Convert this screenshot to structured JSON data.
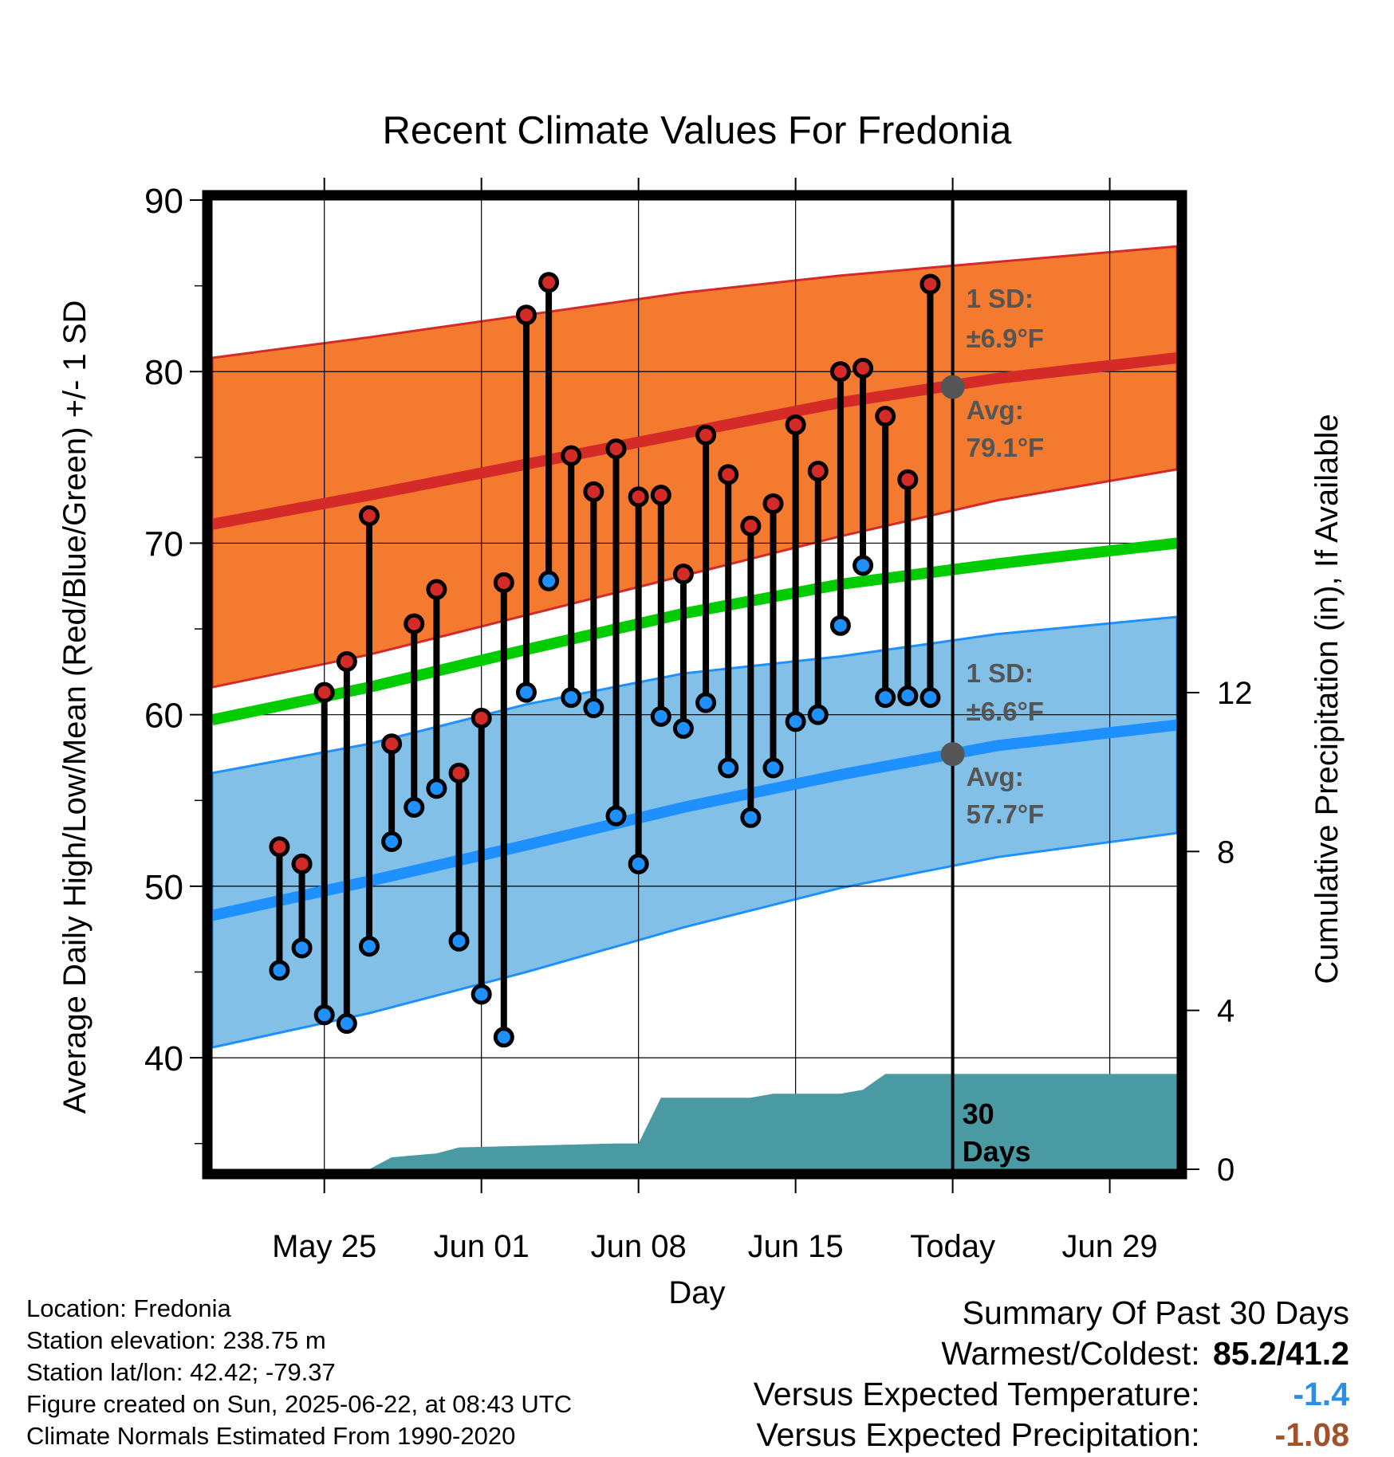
{
  "chart_data": {
    "type": "line",
    "title": "Recent Climate Values For Fredonia",
    "xlabel": "Day",
    "ylabel_left": "Average Daily High/Low/Mean (Red/Blue/Green) +/- 1 SD",
    "ylabel_right": "Cumulative Precipitation (in), If Available",
    "y_left_lim": [
      33.5,
      90
    ],
    "y_left_ticks": [
      40,
      50,
      60,
      70,
      80,
      90
    ],
    "y_right_lim": [
      0,
      24.4
    ],
    "y_right_ticks": [
      0,
      4,
      8,
      12
    ],
    "x_start": "2025-05-20",
    "x_end": "2025-07-02",
    "x_ticks": [
      {
        "date": "2025-05-25",
        "label": "May 25"
      },
      {
        "date": "2025-06-01",
        "label": "Jun 01"
      },
      {
        "date": "2025-06-08",
        "label": "Jun 08"
      },
      {
        "date": "2025-06-15",
        "label": "Jun 15"
      },
      {
        "date": "2025-06-22",
        "label": "Today"
      },
      {
        "date": "2025-06-29",
        "label": "Jun 29"
      }
    ],
    "today": "2025-06-22",
    "days": [
      {
        "date": "2025-05-23",
        "high": 52.3,
        "low": 45.1
      },
      {
        "date": "2025-05-24",
        "high": 51.3,
        "low": 46.4
      },
      {
        "date": "2025-05-25",
        "high": 61.3,
        "low": 42.5
      },
      {
        "date": "2025-05-26",
        "high": 63.1,
        "low": 42.0
      },
      {
        "date": "2025-05-27",
        "high": 71.6,
        "low": 46.5
      },
      {
        "date": "2025-05-28",
        "high": 58.3,
        "low": 52.6
      },
      {
        "date": "2025-05-29",
        "high": 65.3,
        "low": 54.6
      },
      {
        "date": "2025-05-30",
        "high": 67.3,
        "low": 55.7
      },
      {
        "date": "2025-05-31",
        "high": 56.6,
        "low": 46.8
      },
      {
        "date": "2025-06-01",
        "high": 59.8,
        "low": 43.7
      },
      {
        "date": "2025-06-02",
        "high": 67.7,
        "low": 41.2
      },
      {
        "date": "2025-06-03",
        "high": 83.3,
        "low": 61.3
      },
      {
        "date": "2025-06-04",
        "high": 85.2,
        "low": 67.8
      },
      {
        "date": "2025-06-05",
        "high": 75.1,
        "low": 61.0
      },
      {
        "date": "2025-06-06",
        "high": 73.0,
        "low": 60.4
      },
      {
        "date": "2025-06-07",
        "high": 75.5,
        "low": 54.1
      },
      {
        "date": "2025-06-08",
        "high": 72.7,
        "low": 51.3
      },
      {
        "date": "2025-06-09",
        "high": 72.8,
        "low": 59.9
      },
      {
        "date": "2025-06-10",
        "high": 68.2,
        "low": 59.2
      },
      {
        "date": "2025-06-11",
        "high": 76.3,
        "low": 60.7
      },
      {
        "date": "2025-06-12",
        "high": 74.0,
        "low": 56.9
      },
      {
        "date": "2025-06-13",
        "high": 71.0,
        "low": 54.0
      },
      {
        "date": "2025-06-14",
        "high": 72.3,
        "low": 56.9
      },
      {
        "date": "2025-06-15",
        "high": 76.9,
        "low": 59.6
      },
      {
        "date": "2025-06-16",
        "high": 74.2,
        "low": 60.0
      },
      {
        "date": "2025-06-17",
        "high": 80.0,
        "low": 65.2
      },
      {
        "date": "2025-06-18",
        "high": 80.2,
        "low": 68.7
      },
      {
        "date": "2025-06-19",
        "high": 77.4,
        "low": 61.0
      },
      {
        "date": "2025-06-20",
        "high": 73.7,
        "low": 61.1
      },
      {
        "date": "2025-06-21",
        "high": 85.1,
        "low": 61.0
      }
    ],
    "normals": {
      "dates": [
        "2025-05-20",
        "2025-05-27",
        "2025-06-03",
        "2025-06-10",
        "2025-06-17",
        "2025-06-24",
        "2025-07-02"
      ],
      "high_avg": [
        71.1,
        72.8,
        74.6,
        76.4,
        78.2,
        79.6,
        80.8
      ],
      "high_upper": [
        80.8,
        82.0,
        83.3,
        84.6,
        85.6,
        86.4,
        87.3
      ],
      "high_lower": [
        61.6,
        63.5,
        65.8,
        68.1,
        70.4,
        72.5,
        74.3
      ],
      "mean_avg": [
        59.7,
        61.6,
        63.8,
        65.9,
        67.6,
        68.8,
        70.0
      ],
      "low_avg": [
        48.3,
        50.3,
        52.4,
        54.6,
        56.5,
        58.2,
        59.4
      ],
      "low_upper": [
        56.6,
        58.3,
        60.6,
        62.4,
        63.4,
        64.7,
        65.7
      ],
      "low_lower": [
        40.6,
        42.6,
        45.0,
        47.6,
        49.9,
        51.7,
        53.1
      ]
    },
    "today_normals": {
      "high_avg_label": "Avg:",
      "high_avg_value": "79.1°F",
      "high_sd_label": "1 SD:",
      "high_sd_value": "±6.9°F",
      "low_avg_label": "Avg:",
      "low_avg_value": "57.7°F",
      "low_sd_label": "1 SD:",
      "low_sd_value": "±6.6°F",
      "high_avg": 79.1,
      "low_avg": 57.7
    },
    "precip": {
      "dates": [
        "2025-05-20",
        "2025-05-22",
        "2025-05-23",
        "2025-05-24",
        "2025-05-25",
        "2025-05-26",
        "2025-05-27",
        "2025-05-28",
        "2025-05-30",
        "2025-05-31",
        "2025-06-07",
        "2025-06-08",
        "2025-06-09",
        "2025-06-13",
        "2025-06-14",
        "2025-06-17",
        "2025-06-18",
        "2025-06-19",
        "2025-07-02"
      ],
      "values": [
        0,
        0,
        0,
        0,
        0,
        0,
        0,
        0.3,
        0.4,
        0.55,
        0.65,
        0.65,
        1.8,
        1.8,
        1.9,
        1.9,
        2.0,
        2.4,
        2.4
      ]
    },
    "precip_label": "30\nDays",
    "colors": {
      "high": "#d42a28",
      "high_band": "#f47a30",
      "low": "#1e90ff",
      "low_band": "#82c0e8",
      "mean": "#00cc00",
      "precip": "#4a9aa4",
      "annotation": "#555555"
    }
  },
  "info": {
    "location": "Location: Fredonia",
    "elevation": "Station elevation: 238.75 m",
    "latlon": "Station lat/lon: 42.42; -79.37",
    "created": "Figure created on Sun, 2025-06-22, at 08:43 UTC",
    "normals": "Climate Normals Estimated From 1990-2020"
  },
  "summary": {
    "title": "Summary Of Past 30 Days",
    "warm_cold_label": "Warmest/Coldest:",
    "warm_cold_value": "85.2/41.2",
    "temp_label": "Versus Expected Temperature:",
    "temp_value": "-1.4",
    "temp_color": "#2a8fe8",
    "precip_label": "Versus Expected Precipitation:",
    "precip_value": "-1.08",
    "precip_color": "#a0522d"
  }
}
